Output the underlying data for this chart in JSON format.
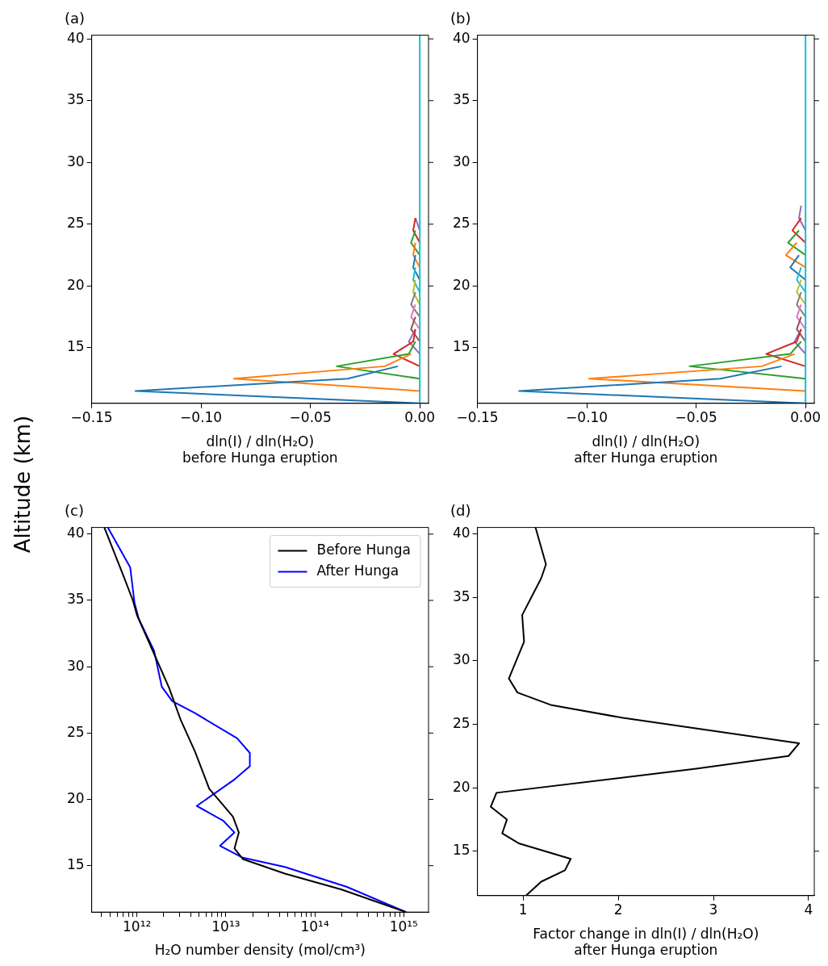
{
  "chart_data": [
    {
      "type": "line",
      "title": "(a)",
      "xlabel": "dln(I) / dln(H₂O)\nbefore Hunga eruption",
      "ylabel": "Altitude (km)",
      "xlim": [
        -0.15,
        0.004
      ],
      "xticks": [
        {
          "value": -0.15,
          "label": "−0.15"
        },
        {
          "value": -0.1,
          "label": "−0.10"
        },
        {
          "value": -0.05,
          "label": "−0.05"
        },
        {
          "value": 0,
          "label": "0.00"
        }
      ],
      "ylim": [
        10.5,
        40.3
      ],
      "yticks": [
        15,
        20,
        25,
        30,
        35,
        40
      ],
      "legend": false,
      "series": [
        {
          "color": "#17becf",
          "x": [
            0,
            0
          ],
          "values": [
            10.5,
            40.3
          ]
        },
        {
          "color": "#1f77b4",
          "x": [
            0,
            -0.13,
            -0.033,
            -0.01
          ],
          "values": [
            10.5,
            11.5,
            12.5,
            13.5
          ]
        },
        {
          "color": "#ff7f0e",
          "x": [
            0,
            -0.085,
            -0.016,
            -0.004
          ],
          "values": [
            11.5,
            12.5,
            13.5,
            14.5
          ]
        },
        {
          "color": "#2ca02c",
          "x": [
            0,
            -0.038,
            -0.005,
            -0.002
          ],
          "values": [
            12.5,
            13.5,
            14.5,
            15.5
          ]
        },
        {
          "color": "#d62728",
          "x": [
            0,
            -0.012,
            -0.003,
            -0.002
          ],
          "values": [
            13.5,
            14.5,
            15.5,
            16.5
          ]
        },
        {
          "color": "#9467bd",
          "x": [
            0,
            -0.005,
            -0.002
          ],
          "values": [
            14.5,
            15.5,
            16.5
          ]
        },
        {
          "color": "#8c564b",
          "x": [
            0,
            -0.004,
            -0.002
          ],
          "values": [
            15.5,
            16.5,
            17.5
          ]
        },
        {
          "color": "#e377c2",
          "x": [
            0,
            -0.004,
            -0.002
          ],
          "values": [
            16.5,
            17.5,
            18.5
          ]
        },
        {
          "color": "#7f7f7f",
          "x": [
            0,
            -0.004,
            -0.002
          ],
          "values": [
            17.5,
            18.5,
            19.5
          ]
        },
        {
          "color": "#bcbd22",
          "x": [
            0,
            -0.003,
            -0.002
          ],
          "values": [
            18.5,
            19.5,
            20.5
          ]
        },
        {
          "color": "#17becf",
          "x": [
            0,
            -0.003,
            -0.002
          ],
          "values": [
            19.5,
            20.5,
            21.5
          ]
        },
        {
          "color": "#1f77b4",
          "x": [
            0,
            -0.003,
            -0.002
          ],
          "values": [
            20.5,
            21.5,
            22.5
          ]
        },
        {
          "color": "#ff7f0e",
          "x": [
            0,
            -0.003,
            -0.002
          ],
          "values": [
            21.5,
            22.5,
            23.5
          ]
        },
        {
          "color": "#2ca02c",
          "x": [
            0,
            -0.004,
            -0.002
          ],
          "values": [
            22.5,
            23.5,
            24.5
          ]
        },
        {
          "color": "#d62728",
          "x": [
            0,
            -0.003,
            -0.002
          ],
          "values": [
            23.5,
            24.5,
            25.5
          ]
        },
        {
          "color": "#9467bd",
          "x": [
            0,
            -0.002
          ],
          "values": [
            24.5,
            25.5
          ]
        }
      ]
    },
    {
      "type": "line",
      "title": "(b)",
      "xlabel": "dln(I) / dln(H₂O)\nafter Hunga eruption",
      "xlim": [
        -0.15,
        0.004
      ],
      "xticks": [
        {
          "value": -0.15,
          "label": "−0.15"
        },
        {
          "value": -0.1,
          "label": "−0.10"
        },
        {
          "value": -0.05,
          "label": "−0.05"
        },
        {
          "value": 0,
          "label": "0.00"
        }
      ],
      "ylim": [
        10.5,
        40.3
      ],
      "yticks": [
        15,
        20,
        25,
        30,
        35,
        40
      ],
      "legend": false,
      "series": [
        {
          "color": "#17becf",
          "x": [
            0,
            0
          ],
          "values": [
            10.5,
            40.3
          ]
        },
        {
          "color": "#1f77b4",
          "x": [
            0,
            -0.131,
            -0.039,
            -0.011
          ],
          "values": [
            10.5,
            11.5,
            12.5,
            13.5
          ]
        },
        {
          "color": "#ff7f0e",
          "x": [
            0,
            -0.099,
            -0.02,
            -0.005
          ],
          "values": [
            11.5,
            12.5,
            13.5,
            14.5
          ]
        },
        {
          "color": "#2ca02c",
          "x": [
            0,
            -0.053,
            -0.007,
            -0.002
          ],
          "values": [
            12.5,
            13.5,
            14.5,
            15.5
          ]
        },
        {
          "color": "#d62728",
          "x": [
            0,
            -0.018,
            -0.004,
            -0.002
          ],
          "values": [
            13.5,
            14.5,
            15.5,
            16.5
          ]
        },
        {
          "color": "#9467bd",
          "x": [
            0,
            -0.005,
            -0.002
          ],
          "values": [
            14.5,
            15.5,
            16.5
          ]
        },
        {
          "color": "#8c564b",
          "x": [
            0,
            -0.004,
            -0.002
          ],
          "values": [
            15.5,
            16.5,
            17.5
          ]
        },
        {
          "color": "#e377c2",
          "x": [
            0,
            -0.004,
            -0.002
          ],
          "values": [
            16.5,
            17.5,
            18.5
          ]
        },
        {
          "color": "#7f7f7f",
          "x": [
            0,
            -0.004,
            -0.002
          ],
          "values": [
            17.5,
            18.5,
            19.5
          ]
        },
        {
          "color": "#bcbd22",
          "x": [
            0,
            -0.004,
            -0.002
          ],
          "values": [
            18.5,
            19.5,
            20.5
          ]
        },
        {
          "color": "#17becf",
          "x": [
            0,
            -0.004,
            -0.002
          ],
          "values": [
            19.5,
            20.5,
            21.5
          ]
        },
        {
          "color": "#1f77b4",
          "x": [
            0,
            -0.007,
            -0.003
          ],
          "values": [
            20.5,
            21.5,
            22.5
          ]
        },
        {
          "color": "#ff7f0e",
          "x": [
            0,
            -0.009,
            -0.004
          ],
          "values": [
            21.5,
            22.5,
            23.5
          ]
        },
        {
          "color": "#2ca02c",
          "x": [
            0,
            -0.008,
            -0.003
          ],
          "values": [
            22.5,
            23.5,
            24.5
          ]
        },
        {
          "color": "#d62728",
          "x": [
            0,
            -0.006,
            -0.002
          ],
          "values": [
            23.5,
            24.5,
            25.5
          ]
        },
        {
          "color": "#9467bd",
          "x": [
            0,
            -0.003,
            -0.002
          ],
          "values": [
            24.5,
            25.5,
            26.5
          ]
        }
      ]
    },
    {
      "type": "line",
      "title": "(c)",
      "xlabel": "H₂O number density (mol/cm³)",
      "log": "x",
      "xlim": [
        310000000000.0,
        1900000000000000.0
      ],
      "xticks": [
        {
          "value": 400000000000.0,
          "label": null
        },
        {
          "value": 500000000000.0,
          "label": null
        },
        {
          "value": 600000000000.0,
          "label": null
        },
        {
          "value": 700000000000.0,
          "label": null
        },
        {
          "value": 800000000000.0,
          "label": null
        },
        {
          "value": 900000000000.0,
          "label": null
        },
        {
          "value": 1000000000000.0,
          "label": "10¹²"
        },
        {
          "value": 2000000000000.0,
          "label": null
        },
        {
          "value": 3000000000000.0,
          "label": null
        },
        {
          "value": 4000000000000.0,
          "label": null
        },
        {
          "value": 5000000000000.0,
          "label": null
        },
        {
          "value": 6000000000000.0,
          "label": null
        },
        {
          "value": 7000000000000.0,
          "label": null
        },
        {
          "value": 8000000000000.0,
          "label": null
        },
        {
          "value": 9000000000000.0,
          "label": null
        },
        {
          "value": 10000000000000.0,
          "label": "10¹³"
        },
        {
          "value": 20000000000000.0,
          "label": null
        },
        {
          "value": 30000000000000.0,
          "label": null
        },
        {
          "value": 40000000000000.0,
          "label": null
        },
        {
          "value": 50000000000000.0,
          "label": null
        },
        {
          "value": 60000000000000.0,
          "label": null
        },
        {
          "value": 70000000000000.0,
          "label": null
        },
        {
          "value": 80000000000000.0,
          "label": null
        },
        {
          "value": 90000000000000.0,
          "label": null
        },
        {
          "value": 100000000000000.0,
          "label": "10¹⁴"
        },
        {
          "value": 200000000000000.0,
          "label": null
        },
        {
          "value": 300000000000000.0,
          "label": null
        },
        {
          "value": 400000000000000.0,
          "label": null
        },
        {
          "value": 500000000000000.0,
          "label": null
        },
        {
          "value": 600000000000000.0,
          "label": null
        },
        {
          "value": 700000000000000.0,
          "label": null
        },
        {
          "value": 800000000000000.0,
          "label": null
        },
        {
          "value": 900000000000000.0,
          "label": null
        },
        {
          "value": 1000000000000000.0,
          "label": "10¹⁵"
        }
      ],
      "ylim": [
        11.5,
        40.5
      ],
      "yticks": [
        15,
        20,
        25,
        30,
        35,
        40
      ],
      "legend": "top right",
      "series": [
        {
          "name": "Before Hunga",
          "color": "#000000",
          "x": [
            430000000000.0,
            720000000000.0,
            900000000000.0,
            1000000000000.0,
            1600000000000.0,
            2300000000000.0,
            3100000000000.0,
            4500000000000.0,
            6500000000000.0,
            12000000000000.0,
            14000000000000.0,
            12500000000000.0,
            15500000000000.0,
            46000000000000.0,
            200000000000000.0,
            1060000000000000.0
          ],
          "values": [
            40.5,
            36.7,
            35.0,
            33.9,
            30.8,
            28.4,
            26.0,
            23.6,
            20.8,
            18.7,
            17.5,
            16.3,
            15.5,
            14.4,
            13.2,
            11.5
          ]
        },
        {
          "name": "After Hunga",
          "color": "#0000ff",
          "x": [
            470000000000.0,
            840000000000.0,
            940000000000.0,
            1050000000000.0,
            1560000000000.0,
            1900000000000.0,
            2500000000000.0,
            4500000000000.0,
            13400000000000.0,
            18600000000000.0,
            18600000000000.0,
            12500000000000.0,
            4700000000000.0,
            9300000000000.0,
            12500000000000.0,
            8600000000000.0,
            15500000000000.0,
            46000000000000.0,
            230000000000000.0,
            1060000000000000.0
          ],
          "values": [
            40.5,
            37.5,
            34.8,
            33.6,
            31.2,
            28.5,
            27.4,
            26.5,
            24.6,
            23.5,
            22.5,
            21.5,
            19.5,
            18.4,
            17.5,
            16.5,
            15.6,
            14.9,
            13.4,
            11.5
          ]
        }
      ]
    },
    {
      "type": "line",
      "title": "(d)",
      "xlabel": "Factor change in dln(I) / dln(H₂O)\nafter Hunga eruption",
      "xlim": [
        0.52,
        4.06
      ],
      "xticks": [
        1,
        2,
        3,
        4
      ],
      "ylim": [
        11.5,
        40.5
      ],
      "yticks": [
        15,
        20,
        25,
        30,
        35,
        40
      ],
      "legend": false,
      "series": [
        {
          "color": "#000000",
          "x": [
            1.13,
            1.24,
            1.19,
            0.99,
            1.01,
            0.85,
            0.94,
            1.3,
            2.05,
            3.9,
            3.79,
            2.82,
            0.72,
            0.66,
            0.83,
            0.78,
            0.96,
            1.5,
            1.44,
            1.19,
            1.03
          ],
          "values": [
            40.5,
            37.6,
            36.5,
            33.6,
            31.5,
            28.6,
            27.5,
            26.5,
            25.5,
            23.5,
            22.5,
            21.5,
            19.6,
            18.5,
            17.5,
            16.4,
            15.6,
            14.4,
            13.5,
            12.6,
            11.5
          ]
        }
      ]
    }
  ]
}
